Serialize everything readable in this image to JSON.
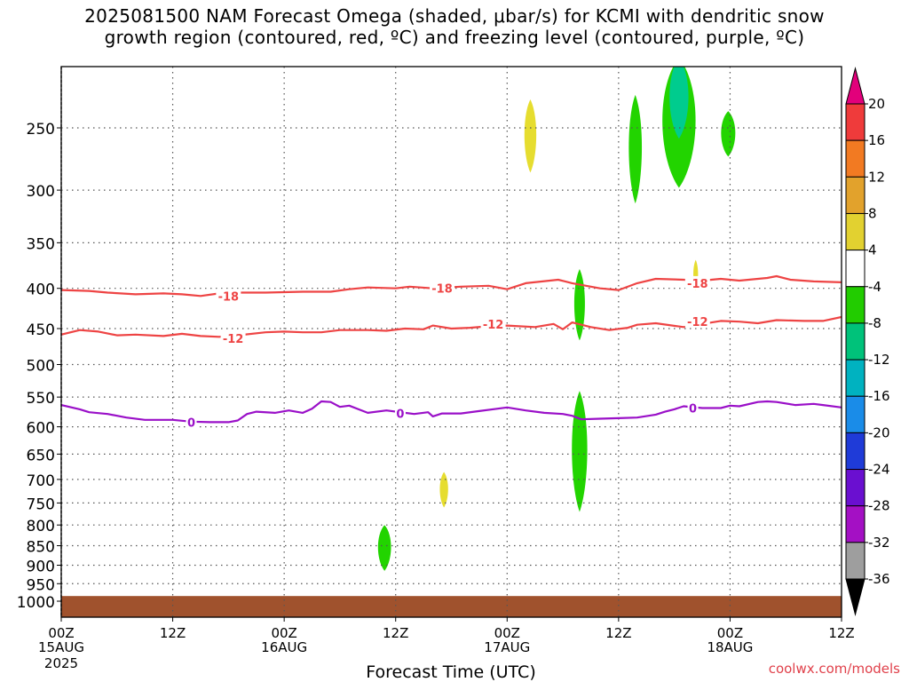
{
  "title_line1": "2025081500 NAM Forecast Omega (shaded, μbar/s) for KCMI with dendritic snow",
  "title_line2": "growth region (contoured, red, ºC) and freezing level (contoured, purple, ºC)",
  "credit": "coolwx.com/models",
  "colors": {
    "dgz": "#ee4444",
    "freezing": "#9a10c8",
    "ground": "#a0522d",
    "green": "#22d400",
    "yellow": "#e6dd2f",
    "teal": "#00cc8e"
  },
  "chart_data": {
    "type": "heatmap",
    "xlabel": "Forecast Time (UTC)",
    "ylabel": "",
    "xlim": [
      0,
      84
    ],
    "ylim": [
      1050,
      200
    ],
    "x_ticks": [
      {
        "hour": 0,
        "label": "00Z",
        "sub": "15AUG",
        "sub2": "2025"
      },
      {
        "hour": 12,
        "label": "12Z",
        "sub": "",
        "sub2": ""
      },
      {
        "hour": 24,
        "label": "00Z",
        "sub": "16AUG",
        "sub2": ""
      },
      {
        "hour": 36,
        "label": "12Z",
        "sub": "",
        "sub2": ""
      },
      {
        "hour": 48,
        "label": "00Z",
        "sub": "17AUG",
        "sub2": ""
      },
      {
        "hour": 60,
        "label": "12Z",
        "sub": "",
        "sub2": ""
      },
      {
        "hour": 72,
        "label": "00Z",
        "sub": "18AUG",
        "sub2": ""
      },
      {
        "hour": 84,
        "label": "12Z",
        "sub": "",
        "sub2": ""
      }
    ],
    "y_ticks": [
      250,
      300,
      350,
      400,
      450,
      500,
      550,
      600,
      650,
      700,
      750,
      800,
      850,
      900,
      950,
      1000
    ],
    "colorbar": {
      "labels": [
        "20",
        "16",
        "12",
        "8",
        "4",
        "-4",
        "-8",
        "-12",
        "-16",
        "-20",
        "-24",
        "-28",
        "-32",
        "-36"
      ],
      "colors": [
        "#e2007b",
        "#ef3b3b",
        "#f27a22",
        "#e2a22c",
        "#e2d130",
        "#ffffff",
        "#22cc00",
        "#00c27a",
        "#00b2c0",
        "#1a8ce8",
        "#1f3bd8",
        "#6a0fd0",
        "#a410c4",
        "#9e9e9e",
        "#000000"
      ]
    },
    "contours": [
      {
        "name": "-18",
        "color": "#ee4444",
        "line": "dgz",
        "points": [
          [
            0,
            402
          ],
          [
            3,
            403
          ],
          [
            5,
            405
          ],
          [
            8,
            407
          ],
          [
            11,
            406
          ],
          [
            13,
            407
          ],
          [
            15,
            409
          ],
          [
            17,
            406
          ],
          [
            19,
            405
          ],
          [
            22,
            405
          ],
          [
            26,
            404
          ],
          [
            29,
            404
          ],
          [
            31,
            401
          ],
          [
            33,
            399
          ],
          [
            36,
            400
          ],
          [
            37.5,
            398
          ],
          [
            40,
            400
          ],
          [
            43,
            398
          ],
          [
            46,
            397
          ],
          [
            48,
            401
          ],
          [
            50,
            394
          ],
          [
            53.5,
            390
          ],
          [
            55,
            394
          ],
          [
            58,
            400
          ],
          [
            60,
            402
          ],
          [
            62,
            394
          ],
          [
            64,
            389
          ],
          [
            67,
            390
          ],
          [
            69,
            391
          ],
          [
            71,
            389
          ],
          [
            73,
            391
          ],
          [
            76,
            388
          ],
          [
            77,
            386
          ],
          [
            78.5,
            390
          ],
          [
            81,
            392
          ],
          [
            84,
            393
          ]
        ],
        "labels": [
          [
            18,
            409
          ],
          [
            41,
            400
          ],
          [
            68.5,
            394
          ]
        ]
      },
      {
        "name": "-12",
        "color": "#ee4444",
        "line": "dgz",
        "points": [
          [
            0,
            458
          ],
          [
            2,
            452
          ],
          [
            4,
            454
          ],
          [
            6,
            459
          ],
          [
            8,
            458
          ],
          [
            11,
            460
          ],
          [
            13,
            457
          ],
          [
            15,
            460
          ],
          [
            17,
            461
          ],
          [
            19,
            459
          ],
          [
            22,
            455
          ],
          [
            24,
            454
          ],
          [
            26,
            455
          ],
          [
            28,
            455
          ],
          [
            30,
            452
          ],
          [
            33,
            452
          ],
          [
            35,
            453
          ],
          [
            37,
            450
          ],
          [
            39,
            451
          ],
          [
            40,
            446
          ],
          [
            42,
            450
          ],
          [
            44,
            449
          ],
          [
            46,
            447
          ],
          [
            48,
            446
          ],
          [
            51,
            448
          ],
          [
            53,
            444
          ],
          [
            54,
            451
          ],
          [
            55,
            442
          ],
          [
            57,
            448
          ],
          [
            59,
            452
          ],
          [
            61,
            449
          ],
          [
            62,
            445
          ],
          [
            64,
            443
          ],
          [
            67,
            448
          ],
          [
            69,
            444
          ],
          [
            71,
            440
          ],
          [
            73,
            441
          ],
          [
            75,
            443
          ],
          [
            77,
            439
          ],
          [
            80,
            440
          ],
          [
            82,
            440
          ],
          [
            84,
            435
          ]
        ],
        "labels": [
          [
            18.5,
            463
          ],
          [
            46.5,
            444
          ],
          [
            68.5,
            441
          ]
        ]
      },
      {
        "name": "0",
        "color": "#9a10c8",
        "line": "freezing",
        "points": [
          [
            0,
            563
          ],
          [
            2,
            570
          ],
          [
            3,
            575
          ],
          [
            5,
            578
          ],
          [
            7,
            584
          ],
          [
            9,
            588
          ],
          [
            12,
            588
          ],
          [
            14,
            591
          ],
          [
            16,
            592
          ],
          [
            18,
            592
          ],
          [
            19,
            589
          ],
          [
            20,
            578
          ],
          [
            21,
            574
          ],
          [
            23,
            576
          ],
          [
            24.5,
            572
          ],
          [
            26,
            576
          ],
          [
            27,
            569
          ],
          [
            28,
            557
          ],
          [
            29,
            558
          ],
          [
            30,
            566
          ],
          [
            31,
            564
          ],
          [
            32,
            570
          ],
          [
            33,
            576
          ],
          [
            35,
            572
          ],
          [
            37,
            576
          ],
          [
            38,
            578
          ],
          [
            39.5,
            575
          ],
          [
            40,
            582
          ],
          [
            41,
            577
          ],
          [
            43,
            577
          ],
          [
            45,
            573
          ],
          [
            47,
            569
          ],
          [
            48,
            567
          ],
          [
            50,
            572
          ],
          [
            52,
            576
          ],
          [
            54,
            578
          ],
          [
            55,
            581
          ],
          [
            56,
            587
          ],
          [
            58,
            586
          ],
          [
            60,
            585
          ],
          [
            62,
            584
          ],
          [
            64,
            579
          ],
          [
            65,
            574
          ],
          [
            66,
            570
          ],
          [
            67,
            565
          ],
          [
            69,
            568
          ],
          [
            71,
            568
          ],
          [
            72,
            564
          ],
          [
            73,
            565
          ],
          [
            75,
            558
          ],
          [
            76,
            557
          ],
          [
            77,
            558
          ],
          [
            79,
            563
          ],
          [
            81,
            561
          ],
          [
            82,
            563
          ],
          [
            84,
            567
          ]
        ],
        "labels": [
          [
            14,
            592
          ],
          [
            36.5,
            577
          ],
          [
            68,
            568
          ]
        ]
      }
    ],
    "shaded_regions": [
      {
        "value": 6,
        "color": "#e6dd2f",
        "hour": 50.5,
        "width": 1.0,
        "p_top": 230,
        "p_bottom": 285
      },
      {
        "value": -6,
        "color": "#22d400",
        "hour": 61.8,
        "width": 1.1,
        "p_top": 227,
        "p_bottom": 312
      },
      {
        "value": -6,
        "color": "#22d400",
        "hour": 66.5,
        "width": 2.8,
        "p_top": 200,
        "p_bottom": 298
      },
      {
        "value": -10,
        "color": "#00cc8e",
        "hour": 66.5,
        "width": 1.6,
        "p_top": 200,
        "p_bottom": 258
      },
      {
        "value": -6,
        "color": "#22d400",
        "hour": 71.8,
        "width": 1.2,
        "p_top": 238,
        "p_bottom": 272
      },
      {
        "value": 6,
        "color": "#e6dd2f",
        "hour": 68.3,
        "width": 0.4,
        "p_top": 368,
        "p_bottom": 402
      },
      {
        "value": -6,
        "color": "#22d400",
        "hour": 55.8,
        "width": 0.9,
        "p_top": 378,
        "p_bottom": 466
      },
      {
        "value": -6,
        "color": "#22d400",
        "hour": 55.8,
        "width": 1.3,
        "p_top": 540,
        "p_bottom": 770
      },
      {
        "value": 6,
        "color": "#e6dd2f",
        "hour": 41.2,
        "width": 0.7,
        "p_top": 685,
        "p_bottom": 760
      },
      {
        "value": -6,
        "color": "#22d400",
        "hour": 34.8,
        "width": 1.1,
        "p_top": 800,
        "p_bottom": 915
      }
    ]
  }
}
